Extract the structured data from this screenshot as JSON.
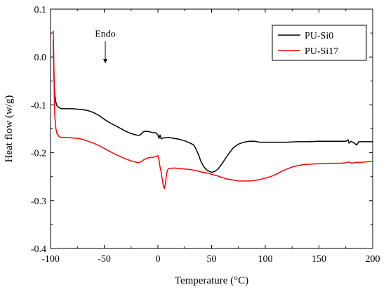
{
  "chart_data": {
    "type": "line",
    "xlabel": "Temperature (°C)",
    "ylabel": "Heat flow (w/g)",
    "xlim": [
      -100,
      200
    ],
    "ylim": [
      -0.4,
      0.1
    ],
    "xticks": [
      -100,
      -50,
      0,
      50,
      100,
      150,
      200
    ],
    "yticks": [
      0.1,
      0.0,
      -0.1,
      -0.2,
      -0.3,
      -0.4
    ],
    "x_tick_labels": [
      "-100",
      "-50",
      "0",
      "50",
      "100",
      "150",
      "200"
    ],
    "y_tick_labels": [
      "0.1",
      "0.0",
      "-0.1",
      "-0.2",
      "-0.3",
      "-0.4"
    ],
    "grid": false,
    "legend_position": "top-right",
    "annotation": {
      "text": "Endo",
      "x": -49,
      "arrow_from_y": 0.033,
      "arrow_to_y": -0.013
    },
    "series": [
      {
        "name": "PU-Si0",
        "color": "#000000",
        "points": [
          [
            -97.5,
            0.035
          ],
          [
            -97,
            -0.02
          ],
          [
            -96.5,
            -0.06
          ],
          [
            -96,
            -0.08
          ],
          [
            -95,
            -0.095
          ],
          [
            -94,
            -0.102
          ],
          [
            -92,
            -0.106
          ],
          [
            -90,
            -0.108
          ],
          [
            -85,
            -0.108
          ],
          [
            -80,
            -0.108
          ],
          [
            -75,
            -0.109
          ],
          [
            -70,
            -0.11
          ],
          [
            -65,
            -0.112
          ],
          [
            -60,
            -0.116
          ],
          [
            -55,
            -0.122
          ],
          [
            -50,
            -0.13
          ],
          [
            -45,
            -0.137
          ],
          [
            -40,
            -0.143
          ],
          [
            -35,
            -0.149
          ],
          [
            -30,
            -0.155
          ],
          [
            -25,
            -0.16
          ],
          [
            -20,
            -0.163
          ],
          [
            -18,
            -0.164
          ],
          [
            -16,
            -0.162
          ],
          [
            -14,
            -0.157
          ],
          [
            -12,
            -0.155
          ],
          [
            -8,
            -0.156
          ],
          [
            -5,
            -0.158
          ],
          [
            -2,
            -0.158
          ],
          [
            0,
            -0.163
          ],
          [
            1,
            -0.17
          ],
          [
            2,
            -0.163
          ],
          [
            3,
            -0.171
          ],
          [
            5,
            -0.169
          ],
          [
            10,
            -0.168
          ],
          [
            15,
            -0.17
          ],
          [
            20,
            -0.172
          ],
          [
            25,
            -0.175
          ],
          [
            30,
            -0.18
          ],
          [
            33,
            -0.183
          ],
          [
            35,
            -0.19
          ],
          [
            38,
            -0.205
          ],
          [
            40,
            -0.218
          ],
          [
            43,
            -0.23
          ],
          [
            46,
            -0.237
          ],
          [
            50,
            -0.241
          ],
          [
            53,
            -0.239
          ],
          [
            56,
            -0.234
          ],
          [
            60,
            -0.222
          ],
          [
            65,
            -0.205
          ],
          [
            70,
            -0.19
          ],
          [
            75,
            -0.182
          ],
          [
            80,
            -0.178
          ],
          [
            85,
            -0.176
          ],
          [
            90,
            -0.176
          ],
          [
            95,
            -0.178
          ],
          [
            100,
            -0.178
          ],
          [
            110,
            -0.178
          ],
          [
            120,
            -0.178
          ],
          [
            130,
            -0.177
          ],
          [
            140,
            -0.177
          ],
          [
            150,
            -0.176
          ],
          [
            160,
            -0.176
          ],
          [
            170,
            -0.176
          ],
          [
            175,
            -0.176
          ],
          [
            177,
            -0.173
          ],
          [
            178,
            -0.18
          ],
          [
            180,
            -0.176
          ],
          [
            183,
            -0.18
          ],
          [
            185,
            -0.184
          ],
          [
            187,
            -0.177
          ],
          [
            190,
            -0.177
          ],
          [
            195,
            -0.177
          ],
          [
            200,
            -0.177
          ]
        ]
      },
      {
        "name": "PU-Si17",
        "color": "#ff0000",
        "points": [
          [
            -97.5,
            0.055
          ],
          [
            -97,
            0.0
          ],
          [
            -96.5,
            -0.08
          ],
          [
            -96,
            -0.125
          ],
          [
            -95,
            -0.15
          ],
          [
            -94,
            -0.16
          ],
          [
            -92,
            -0.166
          ],
          [
            -90,
            -0.168
          ],
          [
            -85,
            -0.168
          ],
          [
            -80,
            -0.169
          ],
          [
            -75,
            -0.17
          ],
          [
            -70,
            -0.172
          ],
          [
            -65,
            -0.176
          ],
          [
            -60,
            -0.18
          ],
          [
            -55,
            -0.185
          ],
          [
            -50,
            -0.191
          ],
          [
            -45,
            -0.197
          ],
          [
            -40,
            -0.203
          ],
          [
            -35,
            -0.208
          ],
          [
            -30,
            -0.213
          ],
          [
            -25,
            -0.217
          ],
          [
            -20,
            -0.22
          ],
          [
            -18,
            -0.221
          ],
          [
            -16,
            -0.219
          ],
          [
            -14,
            -0.216
          ],
          [
            -12,
            -0.213
          ],
          [
            -8,
            -0.21
          ],
          [
            -5,
            -0.21
          ],
          [
            -2,
            -0.208
          ],
          [
            0,
            -0.206
          ],
          [
            1,
            -0.215
          ],
          [
            2,
            -0.23
          ],
          [
            3,
            -0.24
          ],
          [
            4,
            -0.255
          ],
          [
            5,
            -0.268
          ],
          [
            6,
            -0.275
          ],
          [
            7,
            -0.265
          ],
          [
            8,
            -0.245
          ],
          [
            9,
            -0.236
          ],
          [
            10,
            -0.233
          ],
          [
            15,
            -0.232
          ],
          [
            20,
            -0.233
          ],
          [
            25,
            -0.234
          ],
          [
            30,
            -0.235
          ],
          [
            35,
            -0.237
          ],
          [
            40,
            -0.24
          ],
          [
            45,
            -0.242
          ],
          [
            50,
            -0.245
          ],
          [
            55,
            -0.248
          ],
          [
            60,
            -0.252
          ],
          [
            65,
            -0.255
          ],
          [
            70,
            -0.257
          ],
          [
            75,
            -0.259
          ],
          [
            80,
            -0.259
          ],
          [
            85,
            -0.259
          ],
          [
            90,
            -0.258
          ],
          [
            95,
            -0.256
          ],
          [
            100,
            -0.253
          ],
          [
            105,
            -0.25
          ],
          [
            110,
            -0.245
          ],
          [
            115,
            -0.239
          ],
          [
            120,
            -0.234
          ],
          [
            125,
            -0.23
          ],
          [
            130,
            -0.227
          ],
          [
            135,
            -0.225
          ],
          [
            140,
            -0.224
          ],
          [
            150,
            -0.223
          ],
          [
            160,
            -0.222
          ],
          [
            170,
            -0.222
          ],
          [
            175,
            -0.221
          ],
          [
            178,
            -0.219
          ],
          [
            180,
            -0.222
          ],
          [
            185,
            -0.22
          ],
          [
            190,
            -0.22
          ],
          [
            195,
            -0.219
          ],
          [
            200,
            -0.218
          ]
        ]
      }
    ]
  }
}
